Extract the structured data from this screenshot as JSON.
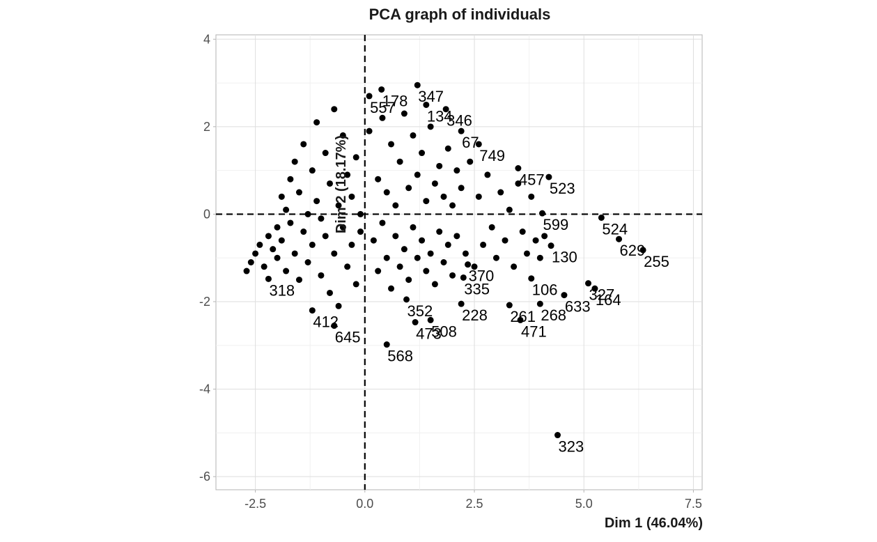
{
  "chart_data": {
    "type": "scatter",
    "title": "PCA graph of individuals",
    "xlabel": "Dim 1 (46.04%)",
    "ylabel": "Dim 2 (18.17%)",
    "xlim": [
      -3.4,
      7.7
    ],
    "ylim": [
      -6.3,
      4.1
    ],
    "x_ticks": [
      -2.5,
      0.0,
      2.5,
      5.0,
      7.5
    ],
    "x_tick_labels": [
      "-2.5",
      "0.0",
      "2.5",
      "5.0",
      "7.5"
    ],
    "y_ticks": [
      -6,
      -4,
      -2,
      0,
      2,
      4
    ],
    "y_tick_labels": [
      "-6",
      "-4",
      "-2",
      "0",
      "2",
      "4"
    ],
    "grid": true,
    "reference_lines": {
      "x": 0,
      "y": 0,
      "style": "dashed"
    },
    "point_color": "#000000",
    "labeled_points": [
      {
        "label": "178",
        "x": 0.38,
        "y": 2.85
      },
      {
        "label": "557",
        "x": 0.1,
        "y": 2.7
      },
      {
        "label": "347",
        "x": 1.2,
        "y": 2.95
      },
      {
        "label": "134",
        "x": 1.4,
        "y": 2.5
      },
      {
        "label": "346",
        "x": 1.85,
        "y": 2.4
      },
      {
        "label": "67",
        "x": 2.2,
        "y": 1.9
      },
      {
        "label": "749",
        "x": 2.6,
        "y": 1.6
      },
      {
        "label": "457",
        "x": 3.5,
        "y": 1.05
      },
      {
        "label": "523",
        "x": 4.2,
        "y": 0.85
      },
      {
        "label": "599",
        "x": 4.05,
        "y": 0.02
      },
      {
        "label": "524",
        "x": 5.4,
        "y": -0.08
      },
      {
        "label": "629",
        "x": 5.8,
        "y": -0.57
      },
      {
        "label": "255",
        "x": 6.35,
        "y": -0.82
      },
      {
        "label": "327",
        "x": 5.1,
        "y": -1.58
      },
      {
        "label": "164",
        "x": 5.25,
        "y": -1.7
      },
      {
        "label": "633",
        "x": 4.55,
        "y": -1.85
      },
      {
        "label": "268",
        "x": 4.0,
        "y": -2.05
      },
      {
        "label": "261",
        "x": 3.3,
        "y": -2.08
      },
      {
        "label": "471",
        "x": 3.55,
        "y": -2.42
      },
      {
        "label": "106",
        "x": 3.8,
        "y": -1.47
      },
      {
        "label": "130",
        "x": 4.25,
        "y": -0.72
      },
      {
        "label": "228",
        "x": 2.2,
        "y": -2.05
      },
      {
        "label": "508",
        "x": 1.5,
        "y": -2.42
      },
      {
        "label": "473",
        "x": 1.15,
        "y": -2.47
      },
      {
        "label": "568",
        "x": 0.5,
        "y": -2.98
      },
      {
        "label": "352",
        "x": 0.95,
        "y": -1.95
      },
      {
        "label": "335",
        "x": 2.25,
        "y": -1.45
      },
      {
        "label": "370",
        "x": 2.35,
        "y": -1.15
      },
      {
        "label": "318",
        "x": -2.2,
        "y": -1.48
      },
      {
        "label": "412",
        "x": -1.2,
        "y": -2.2
      },
      {
        "label": "645",
        "x": -0.7,
        "y": -2.55
      },
      {
        "label": "323",
        "x": 4.4,
        "y": -5.05
      }
    ],
    "unlabeled_points": [
      [
        -2.7,
        -1.3
      ],
      [
        -2.6,
        -1.1
      ],
      [
        -2.5,
        -0.9
      ],
      [
        -2.4,
        -0.7
      ],
      [
        -2.3,
        -1.2
      ],
      [
        -2.2,
        -0.5
      ],
      [
        -2.1,
        -0.8
      ],
      [
        -2.0,
        -1.0
      ],
      [
        -2.0,
        -0.3
      ],
      [
        -1.9,
        0.4
      ],
      [
        -1.9,
        -0.6
      ],
      [
        -1.8,
        0.1
      ],
      [
        -1.8,
        -1.3
      ],
      [
        -1.7,
        0.8
      ],
      [
        -1.7,
        -0.2
      ],
      [
        -1.6,
        1.2
      ],
      [
        -1.6,
        -0.9
      ],
      [
        -1.5,
        0.5
      ],
      [
        -1.5,
        -1.5
      ],
      [
        -1.4,
        1.6
      ],
      [
        -1.4,
        -0.4
      ],
      [
        -1.3,
        0.0
      ],
      [
        -1.3,
        -1.1
      ],
      [
        -1.2,
        1.0
      ],
      [
        -1.2,
        -0.7
      ],
      [
        -1.1,
        2.1
      ],
      [
        -1.1,
        0.3
      ],
      [
        -1.0,
        -0.1
      ],
      [
        -1.0,
        -1.4
      ],
      [
        -0.9,
        1.4
      ],
      [
        -0.9,
        -0.5
      ],
      [
        -0.8,
        0.7
      ],
      [
        -0.8,
        -1.8
      ],
      [
        -0.7,
        2.4
      ],
      [
        -0.7,
        -0.9
      ],
      [
        -0.6,
        0.2
      ],
      [
        -0.6,
        -2.1
      ],
      [
        -0.5,
        1.8
      ],
      [
        -0.5,
        -0.3
      ],
      [
        -0.4,
        0.9
      ],
      [
        -0.4,
        -1.2
      ],
      [
        -0.3,
        0.4
      ],
      [
        -0.3,
        -0.7
      ],
      [
        -0.2,
        1.3
      ],
      [
        -0.2,
        -1.6
      ],
      [
        -0.1,
        0.0
      ],
      [
        -0.1,
        -0.4
      ],
      [
        0.1,
        1.9
      ],
      [
        0.2,
        -0.6
      ],
      [
        0.3,
        0.8
      ],
      [
        0.3,
        -1.3
      ],
      [
        0.4,
        2.2
      ],
      [
        0.4,
        -0.2
      ],
      [
        0.5,
        0.5
      ],
      [
        0.5,
        -1.0
      ],
      [
        0.6,
        1.6
      ],
      [
        0.6,
        -1.7
      ],
      [
        0.7,
        0.2
      ],
      [
        0.7,
        -0.5
      ],
      [
        0.8,
        1.2
      ],
      [
        0.8,
        -1.2
      ],
      [
        0.9,
        2.3
      ],
      [
        0.9,
        -0.8
      ],
      [
        1.0,
        0.6
      ],
      [
        1.0,
        -1.5
      ],
      [
        1.1,
        1.8
      ],
      [
        1.1,
        -0.3
      ],
      [
        1.2,
        0.9
      ],
      [
        1.2,
        -1.0
      ],
      [
        1.3,
        1.4
      ],
      [
        1.3,
        -0.6
      ],
      [
        1.4,
        0.3
      ],
      [
        1.4,
        -1.3
      ],
      [
        1.5,
        2.0
      ],
      [
        1.5,
        -0.9
      ],
      [
        1.6,
        0.7
      ],
      [
        1.6,
        -1.6
      ],
      [
        1.7,
        1.1
      ],
      [
        1.7,
        -0.4
      ],
      [
        1.8,
        0.4
      ],
      [
        1.8,
        -1.1
      ],
      [
        1.9,
        1.5
      ],
      [
        1.9,
        -0.7
      ],
      [
        2.0,
        0.2
      ],
      [
        2.0,
        -1.4
      ],
      [
        2.1,
        1.0
      ],
      [
        2.1,
        -0.5
      ],
      [
        2.2,
        0.6
      ],
      [
        2.3,
        -0.9
      ],
      [
        2.4,
        1.2
      ],
      [
        2.5,
        -1.2
      ],
      [
        2.6,
        0.4
      ],
      [
        2.7,
        -0.7
      ],
      [
        2.8,
        0.9
      ],
      [
        2.9,
        -0.3
      ],
      [
        3.0,
        -1.0
      ],
      [
        3.1,
        0.5
      ],
      [
        3.2,
        -0.6
      ],
      [
        3.3,
        0.1
      ],
      [
        3.4,
        -1.2
      ],
      [
        3.5,
        0.7
      ],
      [
        3.6,
        -0.4
      ],
      [
        3.7,
        -0.9
      ],
      [
        3.8,
        0.4
      ],
      [
        3.9,
        -0.6
      ],
      [
        4.0,
        -1.0
      ],
      [
        4.1,
        -0.5
      ]
    ]
  }
}
